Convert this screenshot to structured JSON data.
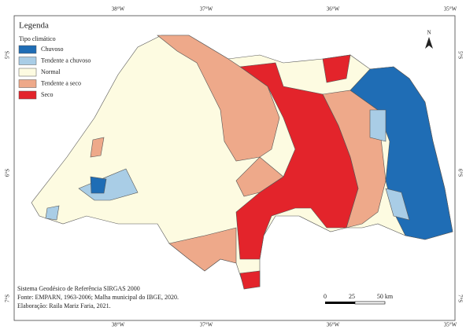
{
  "legend": {
    "title": "Legenda",
    "subtitle": "Tipo climático",
    "items": [
      {
        "label": "Chuvoso",
        "color": "#1f6db5"
      },
      {
        "label": "Tendente a chuvoso",
        "color": "#a9cde6"
      },
      {
        "label": "Normal",
        "color": "#fdfbe1"
      },
      {
        "label": "Tendente a seco",
        "color": "#eea98a"
      },
      {
        "label": "Seco",
        "color": "#e3242b"
      }
    ]
  },
  "coordinates": {
    "top": [
      "38°W",
      "37°W",
      "36°W",
      "35°W"
    ],
    "bottom": [
      "38°W",
      "37°W",
      "36°W",
      "35°W"
    ],
    "left": [
      "5°S",
      "6°S",
      "7°S"
    ],
    "right": [
      "5°S",
      "6°S",
      "7°S"
    ]
  },
  "notes": [
    "Sistema Geodésico de Referência SIRGAS 2000",
    "Fonte: EMPARN, 1963-2006; Malha municipal do IBGE, 2020.",
    "Elaboração: Raila Mariz Faria, 2021."
  ],
  "scale": {
    "labels": [
      "0",
      "25",
      "50 km"
    ]
  },
  "north": "N"
}
